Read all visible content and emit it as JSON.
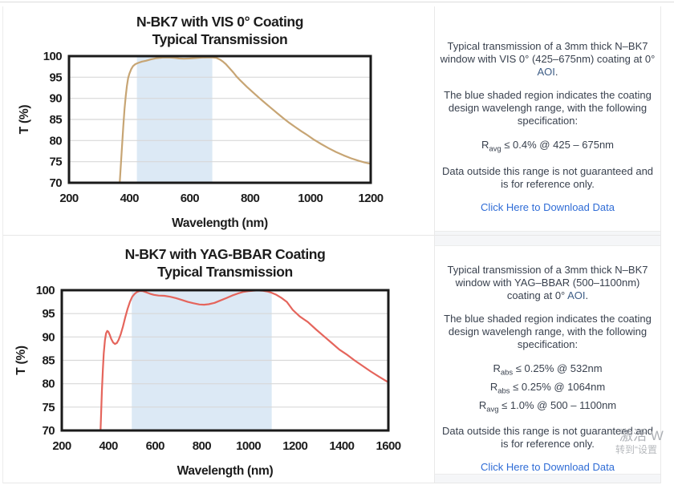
{
  "overlay": {
    "watermark_line1": "激活 W",
    "watermark_line2": "转到“设置"
  },
  "panels": [
    {
      "description": {
        "intro_text": "Typical transmission of a 3mm thick N–BK7 window with VIS 0° (425–675nm) coating at 0° ",
        "intro_aoi": "AOI",
        "intro_period": ".",
        "shaded_note": "The blue shaded region indicates the coating design wavelengh range, with the following specification:",
        "disclaimer": "Data outside this range is not guaranteed and is for reference only."
      },
      "specs": [
        {
          "symbol": "R",
          "sub": "avg",
          "text": " ≤ 0.4% @ 425 – 675nm"
        }
      ],
      "download_link": "Click Here to Download Data"
    },
    {
      "description": {
        "intro_text": "Typical transmission of a 3mm thick N–BK7 window with YAG–BBAR (500–1100nm) coating at 0° ",
        "intro_aoi": "AOI",
        "intro_period": ".",
        "shaded_note": "The blue shaded region indicates the coating design wavelengh range, with the following specification:",
        "disclaimer": "Data outside this range is not guaranteed and is for reference only."
      },
      "specs": [
        {
          "symbol": "R",
          "sub": "abs",
          "text": " ≤ 0.25% @ 532nm"
        },
        {
          "symbol": "R",
          "sub": "abs",
          "text": " ≤ 0.25% @ 1064nm"
        },
        {
          "symbol": "R",
          "sub": "avg",
          "text": " ≤ 1.0% @ 500 – 1100nm"
        }
      ],
      "download_link": "Click Here to Download Data"
    }
  ],
  "chart_data": [
    {
      "type": "line",
      "title_lines": [
        "N-BK7 with VIS 0° Coating",
        "Typical Transmission"
      ],
      "xlabel": "Wavelength (nm)",
      "ylabel": "T (%)",
      "xlim": [
        200,
        1200
      ],
      "ylim": [
        70,
        100
      ],
      "xticks": [
        200,
        400,
        600,
        800,
        1000,
        1200
      ],
      "yticks": [
        70,
        75,
        80,
        85,
        90,
        95,
        100
      ],
      "grid": true,
      "shaded_region": {
        "x0": 425,
        "x1": 675,
        "color": "#dce9f5"
      },
      "line_color": "#c7a574",
      "series": [
        {
          "name": "Transmission",
          "x": [
            368,
            372,
            376,
            380,
            384,
            388,
            392,
            396,
            400,
            406,
            412,
            420,
            430,
            442,
            455,
            470,
            490,
            510,
            530,
            550,
            565,
            580,
            600,
            620,
            640,
            660,
            675,
            688,
            700,
            710,
            720,
            730,
            745,
            755,
            770,
            790,
            810,
            830,
            850,
            870,
            890,
            910,
            930,
            950,
            970,
            990,
            1010,
            1035,
            1060,
            1085,
            1110,
            1135,
            1160,
            1180,
            1200
          ],
          "y": [
            70,
            74.5,
            79,
            83.5,
            87.5,
            90.5,
            93,
            94.8,
            95.8,
            96.9,
            97.6,
            98.1,
            98.4,
            98.7,
            98.9,
            99.2,
            99.5,
            99.65,
            99.7,
            99.6,
            99.45,
            99.4,
            99.45,
            99.55,
            99.65,
            99.7,
            99.7,
            99.6,
            99.2,
            98.7,
            98.1,
            97.3,
            96.1,
            95.2,
            94.1,
            92.7,
            91.4,
            90.1,
            88.9,
            87.7,
            86.5,
            85.3,
            84.2,
            83.2,
            82.2,
            81.3,
            80.3,
            79.2,
            78.2,
            77.3,
            76.5,
            75.8,
            75.2,
            74.8,
            74.5
          ]
        }
      ]
    },
    {
      "type": "line",
      "title_lines": [
        "N-BK7 with YAG-BBAR Coating",
        "Typical Transmission"
      ],
      "xlabel": "Wavelength (nm)",
      "ylabel": "T (%)",
      "xlim": [
        200,
        1600
      ],
      "ylim": [
        70,
        100
      ],
      "xticks": [
        200,
        400,
        600,
        800,
        1000,
        1200,
        1400,
        1600
      ],
      "yticks": [
        70,
        75,
        80,
        85,
        90,
        95,
        100
      ],
      "grid": true,
      "shaded_region": {
        "x0": 500,
        "x1": 1100,
        "color": "#dce9f5"
      },
      "line_color": "#e5655c",
      "series": [
        {
          "name": "Transmission",
          "x": [
            366,
            369,
            372,
            376,
            380,
            385,
            390,
            395,
            400,
            406,
            412,
            420,
            428,
            436,
            444,
            452,
            462,
            472,
            482,
            492,
            502,
            512,
            522,
            535,
            548,
            562,
            578,
            595,
            615,
            640,
            665,
            690,
            715,
            740,
            765,
            790,
            810,
            830,
            855,
            880,
            905,
            930,
            955,
            980,
            1000,
            1020,
            1040,
            1060,
            1080,
            1100,
            1120,
            1140,
            1165,
            1190,
            1220,
            1255,
            1290,
            1325,
            1360,
            1390,
            1420,
            1455,
            1490,
            1525,
            1560,
            1600
          ],
          "y": [
            70,
            74,
            78.5,
            83,
            86.5,
            89.3,
            90.8,
            91.3,
            91.1,
            90.4,
            89.6,
            88.8,
            88.5,
            88.7,
            89.4,
            90.5,
            92.2,
            94.2,
            96,
            97.5,
            98.6,
            99.2,
            99.6,
            99.85,
            99.8,
            99.55,
            99.25,
            99,
            98.85,
            98.8,
            98.6,
            98.3,
            97.9,
            97.5,
            97.2,
            96.95,
            96.9,
            97,
            97.3,
            97.8,
            98.3,
            98.85,
            99.3,
            99.65,
            99.8,
            99.9,
            99.95,
            99.9,
            99.75,
            99.45,
            99,
            98.4,
            97.5,
            95.8,
            94.4,
            93.2,
            91.6,
            90.1,
            88.6,
            87.3,
            86.3,
            85,
            83.8,
            82.6,
            81.5,
            80.3
          ]
        }
      ]
    }
  ]
}
